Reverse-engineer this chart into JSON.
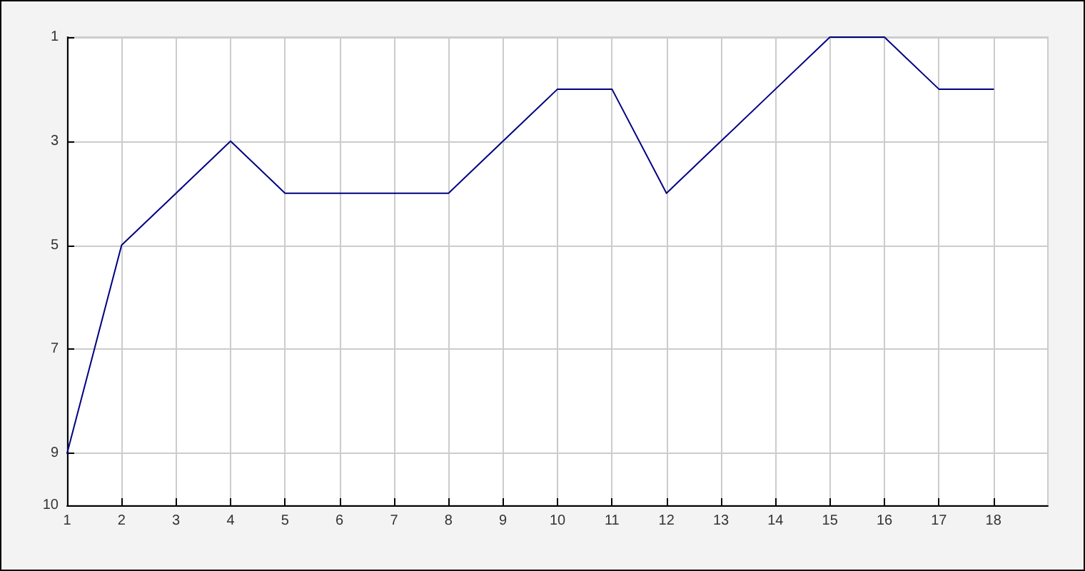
{
  "chart_data": {
    "type": "line",
    "x": [
      1,
      2,
      3,
      4,
      5,
      6,
      7,
      8,
      9,
      10,
      11,
      12,
      13,
      14,
      15,
      16,
      17,
      18
    ],
    "values": [
      9,
      5,
      4,
      3,
      4,
      4,
      4,
      4,
      3,
      2,
      2,
      4,
      3,
      2,
      1,
      1,
      2,
      2
    ],
    "color": "#000080",
    "xlim": [
      1,
      19
    ],
    "xticks": [
      1,
      2,
      3,
      4,
      5,
      6,
      7,
      8,
      9,
      10,
      11,
      12,
      13,
      14,
      15,
      16,
      17,
      18
    ],
    "ylim": [
      10,
      1
    ],
    "yticks": [
      1,
      3,
      5,
      7,
      9,
      10
    ],
    "grid": true,
    "marker": "none",
    "line_style": "solid"
  }
}
